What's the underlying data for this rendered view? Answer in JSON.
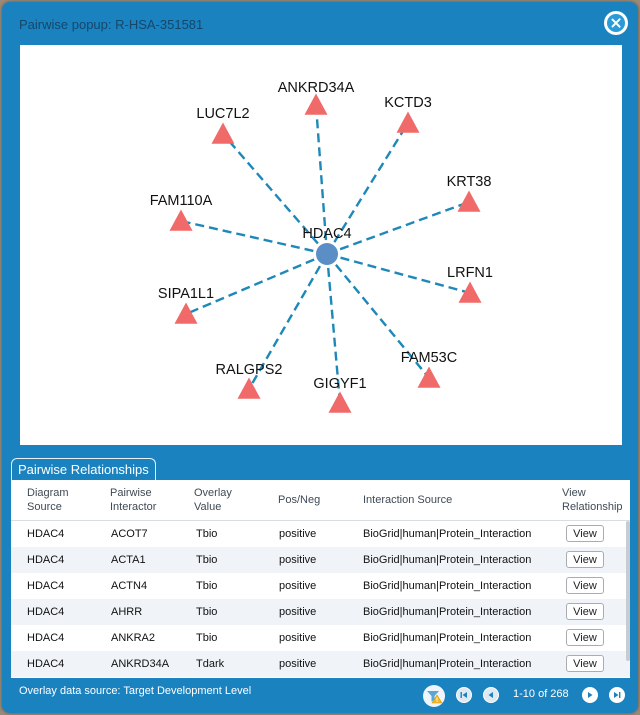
{
  "popup": {
    "title": "Pairwise popup: R-HSA-351581",
    "close_icon": "close-icon"
  },
  "graph": {
    "center": {
      "label": "HDAC4",
      "color": "#5a8ec4"
    },
    "edge_color": "#1e88b8",
    "node_color": "#f06a6a",
    "nodes": [
      {
        "label": "ANKRD34A"
      },
      {
        "label": "KCTD3"
      },
      {
        "label": "LUC7L2"
      },
      {
        "label": "FAM110A"
      },
      {
        "label": "KRT38"
      },
      {
        "label": "LRFN1"
      },
      {
        "label": "SIPA1L1"
      },
      {
        "label": "FAM53C"
      },
      {
        "label": "RALGPS2"
      },
      {
        "label": "GIGYF1"
      }
    ]
  },
  "tab": {
    "label": "Pairwise Relationships"
  },
  "table": {
    "headers": {
      "diagram_source": [
        "Diagram",
        "Source"
      ],
      "pairwise_interactor": [
        "Pairwise",
        "Interactor"
      ],
      "overlay_value": [
        "Overlay",
        "Value"
      ],
      "pos_neg": "Pos/Neg",
      "interaction_source": "Interaction Source",
      "view_relationship": [
        "View",
        "Relationship"
      ]
    },
    "rows": [
      {
        "source": "HDAC4",
        "interactor": "ACOT7",
        "overlay": "Tbio",
        "posneg": "positive",
        "interaction": "BioGrid|human|Protein_Interaction",
        "view": "View"
      },
      {
        "source": "HDAC4",
        "interactor": "ACTA1",
        "overlay": "Tbio",
        "posneg": "positive",
        "interaction": "BioGrid|human|Protein_Interaction",
        "view": "View"
      },
      {
        "source": "HDAC4",
        "interactor": "ACTN4",
        "overlay": "Tbio",
        "posneg": "positive",
        "interaction": "BioGrid|human|Protein_Interaction",
        "view": "View"
      },
      {
        "source": "HDAC4",
        "interactor": "AHRR",
        "overlay": "Tbio",
        "posneg": "positive",
        "interaction": "BioGrid|human|Protein_Interaction",
        "view": "View"
      },
      {
        "source": "HDAC4",
        "interactor": "ANKRA2",
        "overlay": "Tbio",
        "posneg": "positive",
        "interaction": "BioGrid|human|Protein_Interaction",
        "view": "View"
      },
      {
        "source": "HDAC4",
        "interactor": "ANKRD34A",
        "overlay": "Tdark",
        "posneg": "positive",
        "interaction": "BioGrid|human|Protein_Interaction",
        "view": "View"
      }
    ]
  },
  "footer": {
    "overlay_source": "Overlay data source: Target Development Level",
    "filter_icon": "filter-warning-icon",
    "pager": {
      "page_info": "1-10 of 268"
    }
  }
}
